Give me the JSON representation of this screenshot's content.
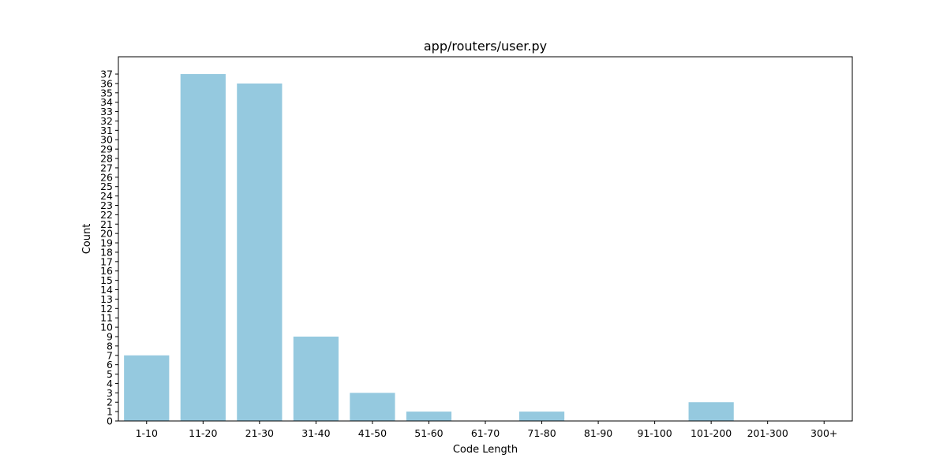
{
  "chart_data": {
    "type": "bar",
    "title": "app/routers/user.py",
    "xlabel": "Code Length",
    "ylabel": "Count",
    "categories": [
      "1-10",
      "11-20",
      "21-30",
      "31-40",
      "41-50",
      "51-60",
      "61-70",
      "71-80",
      "81-90",
      "91-100",
      "101-200",
      "201-300",
      "300+"
    ],
    "values": [
      7,
      37,
      36,
      9,
      3,
      1,
      0,
      1,
      0,
      0,
      2,
      0,
      0
    ],
    "ylim": [
      0,
      38.85
    ],
    "yticks": [
      0,
      1,
      2,
      3,
      4,
      5,
      6,
      7,
      8,
      9,
      10,
      11,
      12,
      13,
      14,
      15,
      16,
      17,
      18,
      19,
      20,
      21,
      22,
      23,
      24,
      25,
      26,
      27,
      28,
      29,
      30,
      31,
      32,
      33,
      34,
      35,
      36,
      37
    ],
    "bar_color": "#95c9df",
    "grid": false,
    "legend": "none"
  }
}
